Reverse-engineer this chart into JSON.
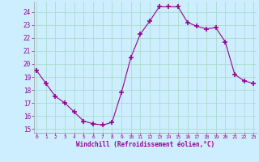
{
  "x": [
    0,
    1,
    2,
    3,
    4,
    5,
    6,
    7,
    8,
    9,
    10,
    11,
    12,
    13,
    14,
    15,
    16,
    17,
    18,
    19,
    20,
    21,
    22,
    23
  ],
  "y": [
    19.5,
    18.5,
    17.5,
    17.0,
    16.3,
    15.6,
    15.4,
    15.3,
    15.5,
    17.8,
    20.5,
    22.3,
    23.3,
    24.4,
    24.4,
    24.4,
    23.2,
    22.9,
    22.7,
    22.8,
    21.7,
    19.2,
    18.7,
    18.5
  ],
  "line_color": "#990099",
  "marker": "+",
  "marker_size": 4,
  "marker_lw": 1.2,
  "bg_color": "#cceeff",
  "grid_color": "#aaddcc",
  "xlabel": "Windchill (Refroidissement éolien,°C)",
  "xlabel_color": "#990099",
  "tick_color": "#990099",
  "yticks": [
    15,
    16,
    17,
    18,
    19,
    20,
    21,
    22,
    23,
    24
  ],
  "xticks": [
    0,
    1,
    2,
    3,
    4,
    5,
    6,
    7,
    8,
    9,
    10,
    11,
    12,
    13,
    14,
    15,
    16,
    17,
    18,
    19,
    20,
    21,
    22,
    23
  ],
  "xlim": [
    -0.3,
    23.3
  ],
  "ylim": [
    14.7,
    24.8
  ]
}
